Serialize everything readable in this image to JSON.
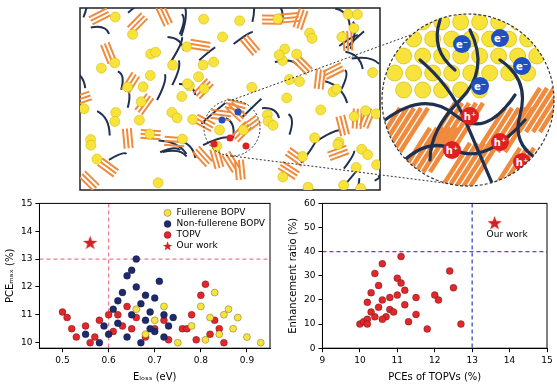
{
  "diagram": {
    "electron": "e⁻",
    "hole": "h⁺"
  },
  "chart_data": [
    {
      "type": "scatter",
      "x_label": "Eₗₒₛₛ (eV)",
      "y_label": "PCEₘₐₓ (%)",
      "xlim": [
        0.45,
        0.95
      ],
      "xticks": [
        0.5,
        0.6,
        0.7,
        0.8,
        0.9
      ],
      "ylim": [
        9.8,
        15
      ],
      "yticks": [
        10,
        11,
        12,
        13,
        14,
        15
      ],
      "grid": false,
      "legend": "upper right",
      "reference_lines": [
        {
          "axis": "x",
          "value": 0.6,
          "color": "#f07c8c",
          "line_style": "dashed"
        },
        {
          "axis": "y",
          "value": 13,
          "color": "#f07c8c",
          "line_style": "dashed"
        }
      ],
      "series": [
        {
          "name": "Fullerene BOPV",
          "color": "#f7e33c",
          "marker": "circle",
          "x": [
            0.66,
            0.68,
            0.7,
            0.72,
            0.75,
            0.78,
            0.8,
            0.82,
            0.83,
            0.84,
            0.85,
            0.87,
            0.88,
            0.9,
            0.93,
            0.86,
            0.81
          ],
          "values": [
            11.2,
            10.3,
            10.8,
            11.3,
            10.0,
            10.6,
            11.3,
            10.9,
            11.8,
            10.3,
            11.0,
            10.5,
            10.9,
            10.2,
            10.0,
            11.2,
            10.1
          ]
        },
        {
          "name": "Non-fullerene BOPV",
          "color": "#1f2a6e",
          "marker": "circle",
          "x": [
            0.55,
            0.58,
            0.59,
            0.6,
            0.61,
            0.62,
            0.63,
            0.64,
            0.65,
            0.66,
            0.66,
            0.67,
            0.68,
            0.68,
            0.69,
            0.7,
            0.7,
            0.71,
            0.72,
            0.73,
            0.74,
            0.64,
            0.62,
            0.67,
            0.69,
            0.72,
            0.65
          ],
          "values": [
            10.3,
            10.0,
            10.6,
            10.3,
            11.2,
            11.5,
            11.8,
            12.4,
            12.6,
            13.0,
            12.0,
            11.4,
            11.7,
            10.8,
            11.1,
            11.6,
            10.4,
            12.2,
            11.0,
            10.6,
            10.9,
            10.2,
            10.7,
            10.0,
            10.5,
            10.2,
            11.0
          ]
        },
        {
          "name": "TOPV",
          "color": "#e3262a",
          "marker": "circle",
          "x": [
            0.5,
            0.51,
            0.52,
            0.53,
            0.55,
            0.56,
            0.58,
            0.6,
            0.61,
            0.62,
            0.64,
            0.65,
            0.66,
            0.68,
            0.7,
            0.72,
            0.73,
            0.76,
            0.77,
            0.78,
            0.79,
            0.8,
            0.81,
            0.82,
            0.83,
            0.84,
            0.85,
            0.63,
            0.57
          ],
          "values": [
            11.1,
            10.9,
            10.5,
            10.2,
            10.6,
            10.0,
            10.8,
            11.0,
            10.4,
            11.0,
            11.3,
            10.5,
            10.9,
            10.2,
            10.5,
            10.8,
            10.1,
            10.5,
            10.5,
            11.0,
            10.1,
            11.7,
            12.1,
            10.3,
            10.8,
            10.5,
            10.0,
            10.6,
            10.2
          ]
        },
        {
          "name": "Our work",
          "color": "#d42020",
          "marker": "star",
          "x": [
            0.56
          ],
          "values": [
            13.6
          ]
        }
      ]
    },
    {
      "type": "scatter",
      "x_label": "PCEs of TOPVs (%)",
      "y_label": "Enhancement ratio (%)",
      "xlim": [
        9,
        15
      ],
      "xticks": [
        9,
        10,
        11,
        12,
        13,
        14,
        15
      ],
      "ylim": [
        0,
        60
      ],
      "yticks": [
        0,
        10,
        20,
        30,
        40,
        50,
        60
      ],
      "grid": false,
      "reference_lines": [
        {
          "axis": "x",
          "value": 13,
          "color": "#2b3fc9",
          "line_style": "dashed"
        },
        {
          "axis": "y",
          "value": 40,
          "color": "#8a2be2",
          "line_style": "dashed"
        }
      ],
      "annotations": [
        {
          "text": "Our work",
          "x": 13.6,
          "y": 52
        }
      ],
      "series": [
        {
          "color": "#e3262a",
          "marker": "circle",
          "x": [
            10.0,
            10.1,
            10.2,
            10.2,
            10.3,
            10.3,
            10.4,
            10.5,
            10.5,
            10.6,
            10.6,
            10.7,
            10.8,
            10.8,
            10.9,
            11.0,
            11.0,
            11.1,
            11.1,
            11.2,
            11.2,
            11.3,
            11.5,
            11.5,
            11.8,
            12.0,
            12.1,
            12.4,
            12.5,
            12.7,
            10.4,
            10.2,
            10.6
          ],
          "values": [
            10,
            11,
            12,
            19,
            15,
            23,
            13,
            17,
            26,
            20,
            35,
            13,
            16,
            21,
            15,
            22,
            29,
            27,
            38,
            18,
            24,
            11,
            14,
            21,
            8,
            22,
            20,
            32,
            25,
            10,
            31,
            10,
            12
          ]
        },
        {
          "color": "#d42020",
          "marker": "star",
          "x": [
            13.6
          ],
          "values": [
            52
          ]
        }
      ]
    }
  ]
}
